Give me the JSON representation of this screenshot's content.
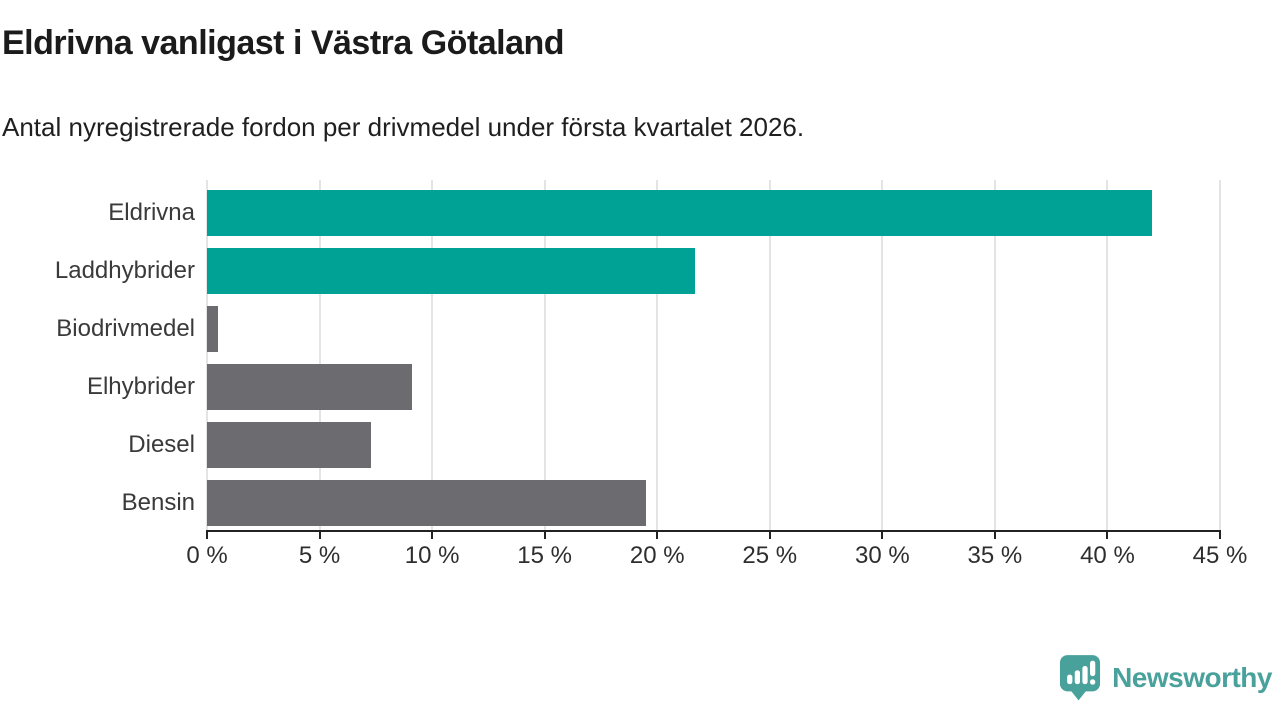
{
  "header": {
    "title": "Eldrivna vanligast i Västra Götaland",
    "subtitle": "Antal nyregistrerade fordon per drivmedel under första kvartalet 2026."
  },
  "chart_data": {
    "type": "bar",
    "orientation": "horizontal",
    "title": "Eldrivna vanligast i Västra Götaland",
    "subtitle": "Antal nyregistrerade fordon per drivmedel under första kvartalet 2026.",
    "categories": [
      "Eldrivna",
      "Laddhybrider",
      "Biodrivmedel",
      "Elhybrider",
      "Diesel",
      "Bensin"
    ],
    "values": [
      42.0,
      21.7,
      0.5,
      9.1,
      7.3,
      19.5
    ],
    "unit": "%",
    "bar_colors": [
      "#00a296",
      "#00a296",
      "#6c6b70",
      "#6c6b70",
      "#6c6b70",
      "#6c6b70"
    ],
    "highlight_color": "#00a296",
    "base_color": "#6c6b70",
    "xlim": [
      0,
      45
    ],
    "x_tick_step": 5,
    "x_tick_labels": [
      "0 %",
      "5 %",
      "10 %",
      "15 %",
      "20 %",
      "25 %",
      "30 %",
      "35 %",
      "40 %",
      "45 %"
    ],
    "grid": "vertical-only",
    "gridline_color": "#e4e4e4",
    "legend": "none"
  },
  "footer": {
    "brand": "Newsworthy",
    "brand_color": "#48a19b"
  }
}
